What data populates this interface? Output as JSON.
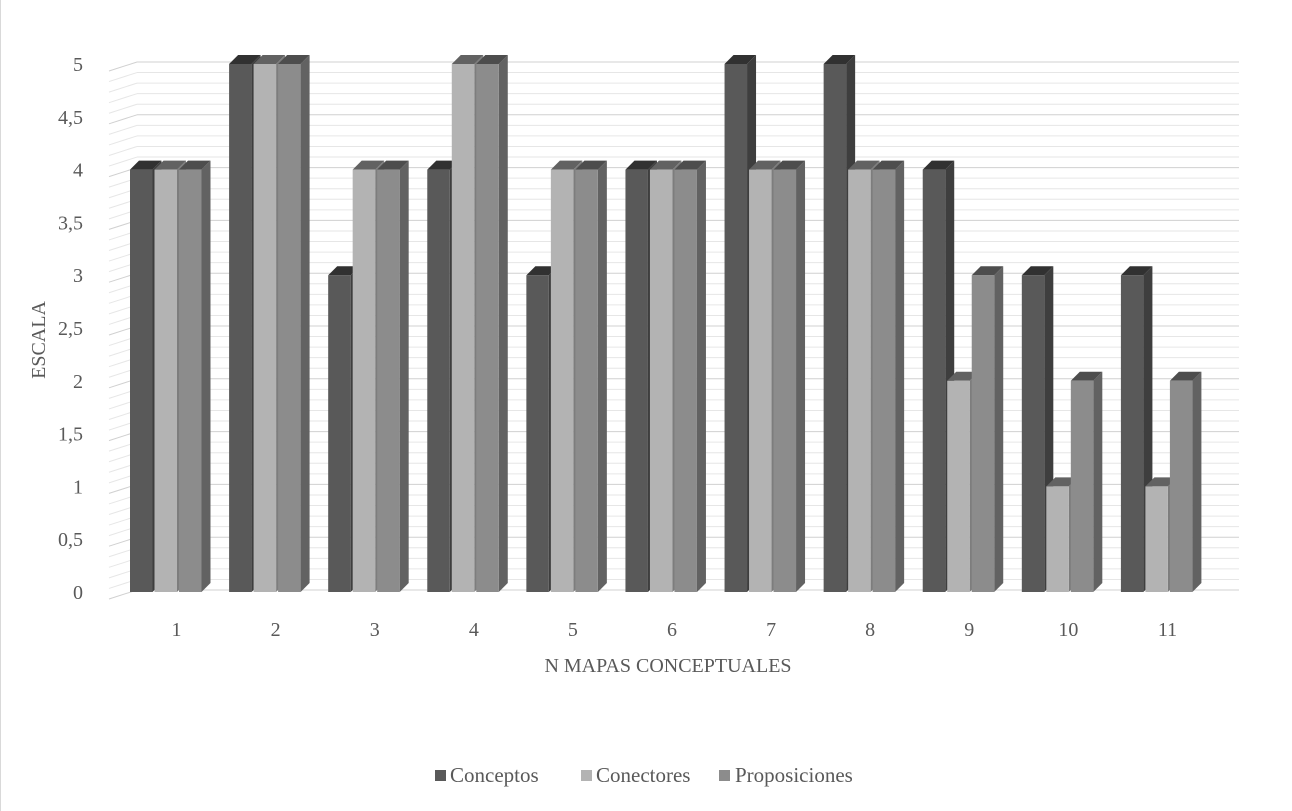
{
  "chart_data": {
    "type": "bar",
    "title": "",
    "xlabel": "N MAPAS CONCEPTUALES",
    "ylabel": "ESCALA",
    "categories": [
      "1",
      "2",
      "3",
      "4",
      "5",
      "6",
      "7",
      "8",
      "9",
      "10",
      "11"
    ],
    "series": [
      {
        "name": "Conceptos",
        "color": "#595959",
        "values": [
          4,
          5,
          3,
          4,
          3,
          4,
          5,
          5,
          4,
          3,
          3
        ]
      },
      {
        "name": "Conectores",
        "color": "#b3b3b3",
        "values": [
          4,
          5,
          4,
          5,
          4,
          4,
          4,
          4,
          2,
          1,
          1
        ]
      },
      {
        "name": "Proposiciones",
        "color": "#8c8c8c",
        "values": [
          4,
          5,
          4,
          5,
          4,
          4,
          4,
          4,
          3,
          2,
          2
        ]
      }
    ],
    "ylim": [
      0,
      5
    ],
    "yticks": [
      "0",
      "0,5",
      "1",
      "1,5",
      "2",
      "2,5",
      "3",
      "3,5",
      "4",
      "4,5",
      "5"
    ],
    "ytick_values": [
      0,
      0.5,
      1,
      1.5,
      2,
      2.5,
      3,
      3.5,
      4,
      4.5,
      5
    ],
    "grid": true,
    "legend_position": "bottom"
  }
}
